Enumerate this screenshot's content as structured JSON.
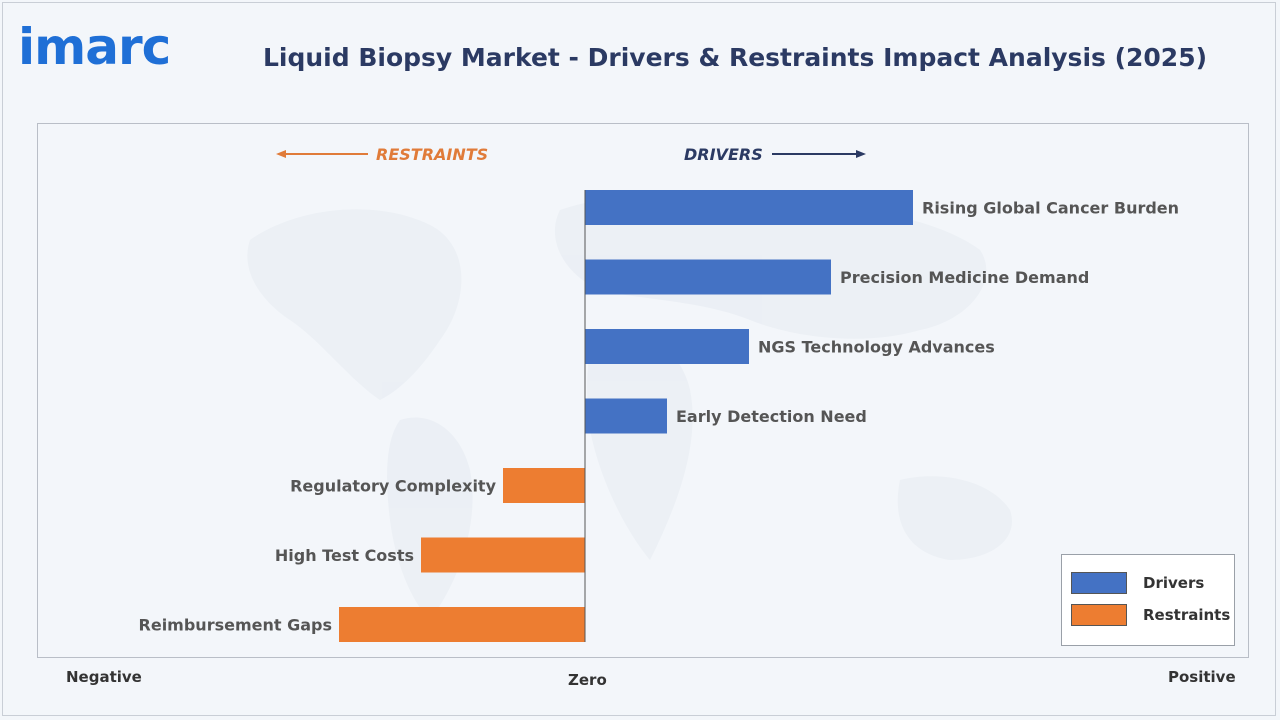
{
  "brand": {
    "logo_text": "imarc"
  },
  "header": {
    "title": "Liquid Biopsy Market - Drivers & Restraints Impact Analysis (2025)"
  },
  "chart_data": {
    "type": "bar",
    "orientation": "horizontal",
    "categories": [
      "Rising Global Cancer Burden",
      "Precision Medicine Demand",
      "NGS Technology Advances",
      "Early Detection Need",
      "Regulatory Complexity",
      "High Test Costs",
      "Reimbursement Gaps"
    ],
    "series": [
      {
        "name": "Drivers",
        "color": "#4472c4",
        "values": [
          4,
          3,
          2,
          1,
          0,
          0,
          0
        ]
      },
      {
        "name": "Restraints",
        "color": "#ed7d31",
        "values": [
          0,
          0,
          0,
          0,
          -1,
          -2,
          -3
        ]
      }
    ],
    "xlim": [
      -6.7,
      8
    ],
    "direction_labels": {
      "restraints": "RESTRAINTS",
      "drivers": "DRIVERS"
    },
    "axis_labels": {
      "negative": "Negative",
      "zero": "Zero",
      "positive": "Positive"
    },
    "legend": {
      "placement": "bottom-right",
      "items": [
        "Drivers",
        "Restraints"
      ]
    },
    "colors": {
      "drivers": "#4472c4",
      "restraints": "#ed7d31",
      "restraints_text": "#e07b39",
      "drivers_text": "#2b3a63"
    }
  }
}
